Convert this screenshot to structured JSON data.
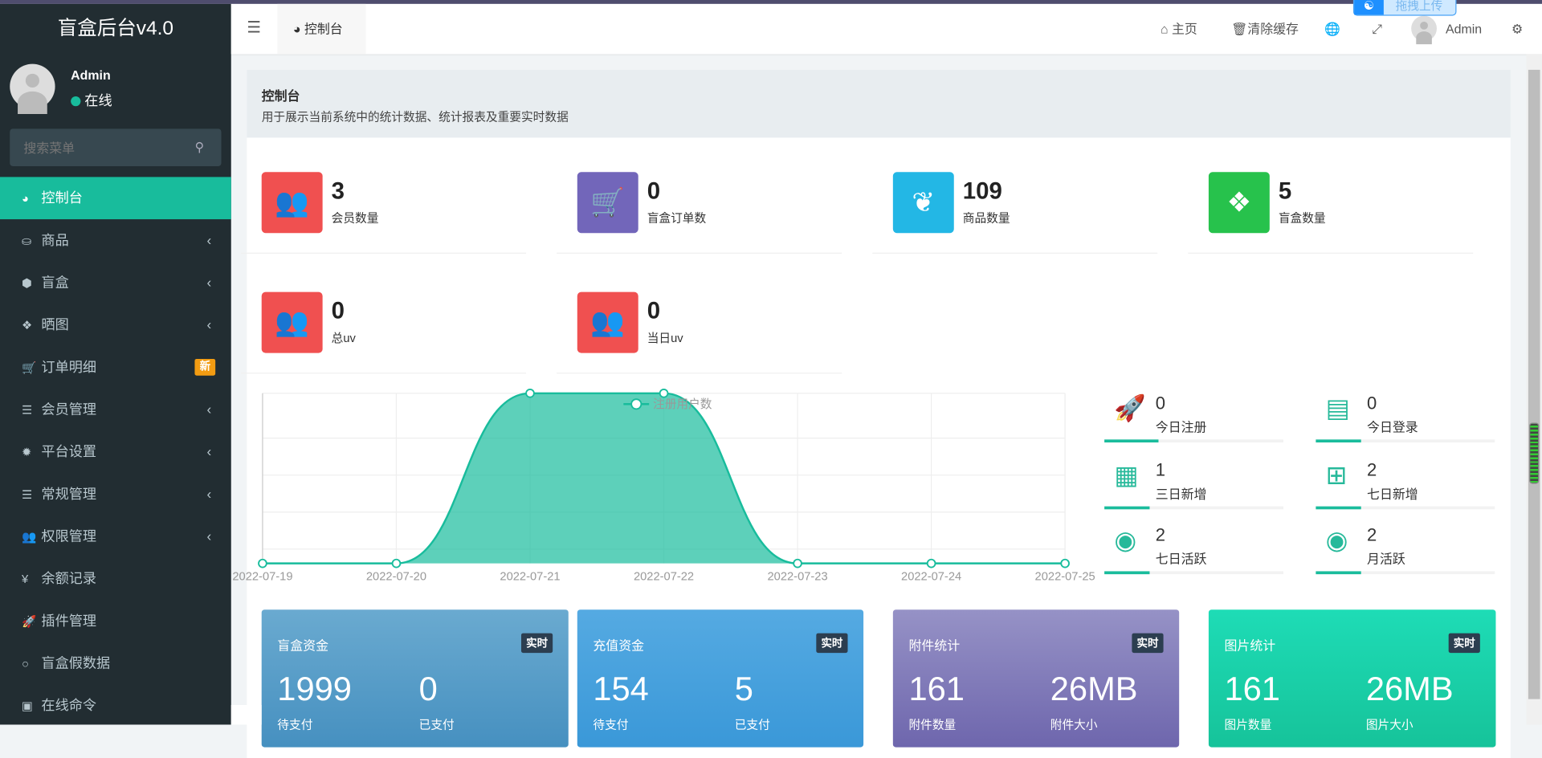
{
  "app": {
    "title": "盲盒后台v4.0",
    "user": "Admin",
    "status": "在线",
    "search_placeholder": "搜索菜单"
  },
  "sidebar": {
    "items": [
      {
        "label": "控制台",
        "icon": "dashboard-icon",
        "active": true
      },
      {
        "label": "商品",
        "icon": "shopping-bag-icon",
        "chevron": true
      },
      {
        "label": "盲盒",
        "icon": "cube-icon",
        "chevron": true
      },
      {
        "label": "晒图",
        "icon": "dropbox-icon",
        "chevron": true
      },
      {
        "label": "订单明细",
        "icon": "cart-icon",
        "badge": "新"
      },
      {
        "label": "会员管理",
        "icon": "list-icon",
        "chevron": true
      },
      {
        "label": "平台设置",
        "icon": "gear-icon",
        "chevron": true
      },
      {
        "label": "常规管理",
        "icon": "database-icon",
        "chevron": true
      },
      {
        "label": "权限管理",
        "icon": "users-icon",
        "chevron": true
      },
      {
        "label": "余额记录",
        "icon": "yen-icon"
      },
      {
        "label": "插件管理",
        "icon": "rocket-icon"
      },
      {
        "label": "盲盒假数据",
        "icon": "circle-icon"
      },
      {
        "label": "在线命令",
        "icon": "terminal-icon"
      }
    ]
  },
  "header": {
    "tab": "控制台",
    "home": "主页",
    "clear_cache": "清除缓存",
    "user": "Admin",
    "upload": "拖拽上传"
  },
  "panel": {
    "title": "控制台",
    "subtitle": "用于展示当前系统中的统计数据、统计报表及重要实时数据"
  },
  "stats": [
    {
      "value": "3",
      "label": "会员数量",
      "color": "#f05050",
      "icon": "users-icon"
    },
    {
      "value": "0",
      "label": "盲盒订单数",
      "color": "#7266ba",
      "icon": "cart-icon"
    },
    {
      "value": "109",
      "label": "商品数量",
      "color": "#23b7e5",
      "icon": "leaf-icon"
    },
    {
      "value": "5",
      "label": "盲盒数量",
      "color": "#27c24c",
      "icon": "dropbox-icon"
    },
    {
      "value": "0",
      "label": "总uv",
      "color": "#f05050",
      "icon": "users-icon"
    },
    {
      "value": "0",
      "label": "当日uv",
      "color": "#f05050",
      "icon": "users-icon"
    }
  ],
  "chart_data": {
    "type": "area",
    "x": [
      "2022-07-19",
      "2022-07-20",
      "2022-07-21",
      "2022-07-22",
      "2022-07-23",
      "2022-07-24",
      "2022-07-25"
    ],
    "series": [
      {
        "name": "注册用户数",
        "values": [
          0,
          0,
          1,
          1,
          0,
          0,
          0
        ]
      }
    ],
    "legend": "top-center",
    "grid": true,
    "color": "#18bc9c"
  },
  "side_stats": [
    {
      "value": "0",
      "label": "今日注册",
      "icon": "rocket-icon",
      "progress": 30
    },
    {
      "value": "0",
      "label": "今日登录",
      "icon": "id-card-icon",
      "progress": 25
    },
    {
      "value": "1",
      "label": "三日新增",
      "icon": "calendar-icon",
      "progress": 25
    },
    {
      "value": "2",
      "label": "七日新增",
      "icon": "calendar-plus-icon",
      "progress": 25
    },
    {
      "value": "2",
      "label": "七日活跃",
      "icon": "user-circle-icon",
      "progress": 25
    },
    {
      "value": "2",
      "label": "月活跃",
      "icon": "user-circle-icon",
      "progress": 25
    }
  ],
  "big_cards": [
    {
      "title": "盲盒资金",
      "tag": "实时",
      "v1": "1999",
      "s1": "待支付",
      "v2": "0",
      "s2": "已支付"
    },
    {
      "title": "充值资金",
      "tag": "实时",
      "v1": "154",
      "s1": "待支付",
      "v2": "5",
      "s2": "已支付"
    },
    {
      "title": "附件统计",
      "tag": "实时",
      "v1": "161",
      "s1": "附件数量",
      "v2": "26MB",
      "s2": "附件大小"
    },
    {
      "title": "图片统计",
      "tag": "实时",
      "v1": "161",
      "s1": "图片数量",
      "v2": "26MB",
      "s2": "图片大小"
    }
  ]
}
